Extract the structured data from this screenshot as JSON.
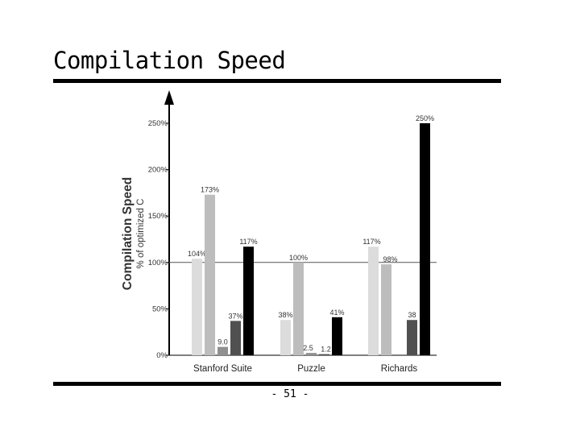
{
  "slide": {
    "title": "Compilation Speed",
    "page_number": "- 51 -"
  },
  "chart_data": {
    "type": "bar",
    "title": "",
    "ylabel": "Compilation Speed",
    "ylabel_sub": "% of optimized C",
    "xlabel": "",
    "ylim": [
      0,
      250
    ],
    "yticks": [
      "0%",
      "50%",
      "100%",
      "150%",
      "200%",
      "250%"
    ],
    "reference_line": 100,
    "grid": false,
    "legend": "none",
    "categories": [
      "Stanford Suite",
      "Puzzle",
      "Richards"
    ],
    "series": [
      {
        "color": "#dcdcdc",
        "values": [
          104,
          38,
          117
        ],
        "labels": [
          "104%",
          "38%",
          "117%"
        ]
      },
      {
        "color": "#bdbdbd",
        "values": [
          173,
          100,
          98
        ],
        "labels": [
          "173%",
          "100%",
          "98%"
        ]
      },
      {
        "color": "#909090",
        "values": [
          9,
          2.5,
          0
        ],
        "labels": [
          "9.0",
          "2.5",
          ""
        ]
      },
      {
        "color": "#505050",
        "values": [
          37,
          1.2,
          38
        ],
        "labels": [
          "37%",
          "1.2",
          "38"
        ]
      },
      {
        "color": "#000000",
        "values": [
          117,
          41,
          250
        ],
        "labels": [
          "117%",
          "41%",
          "250%"
        ]
      }
    ]
  }
}
